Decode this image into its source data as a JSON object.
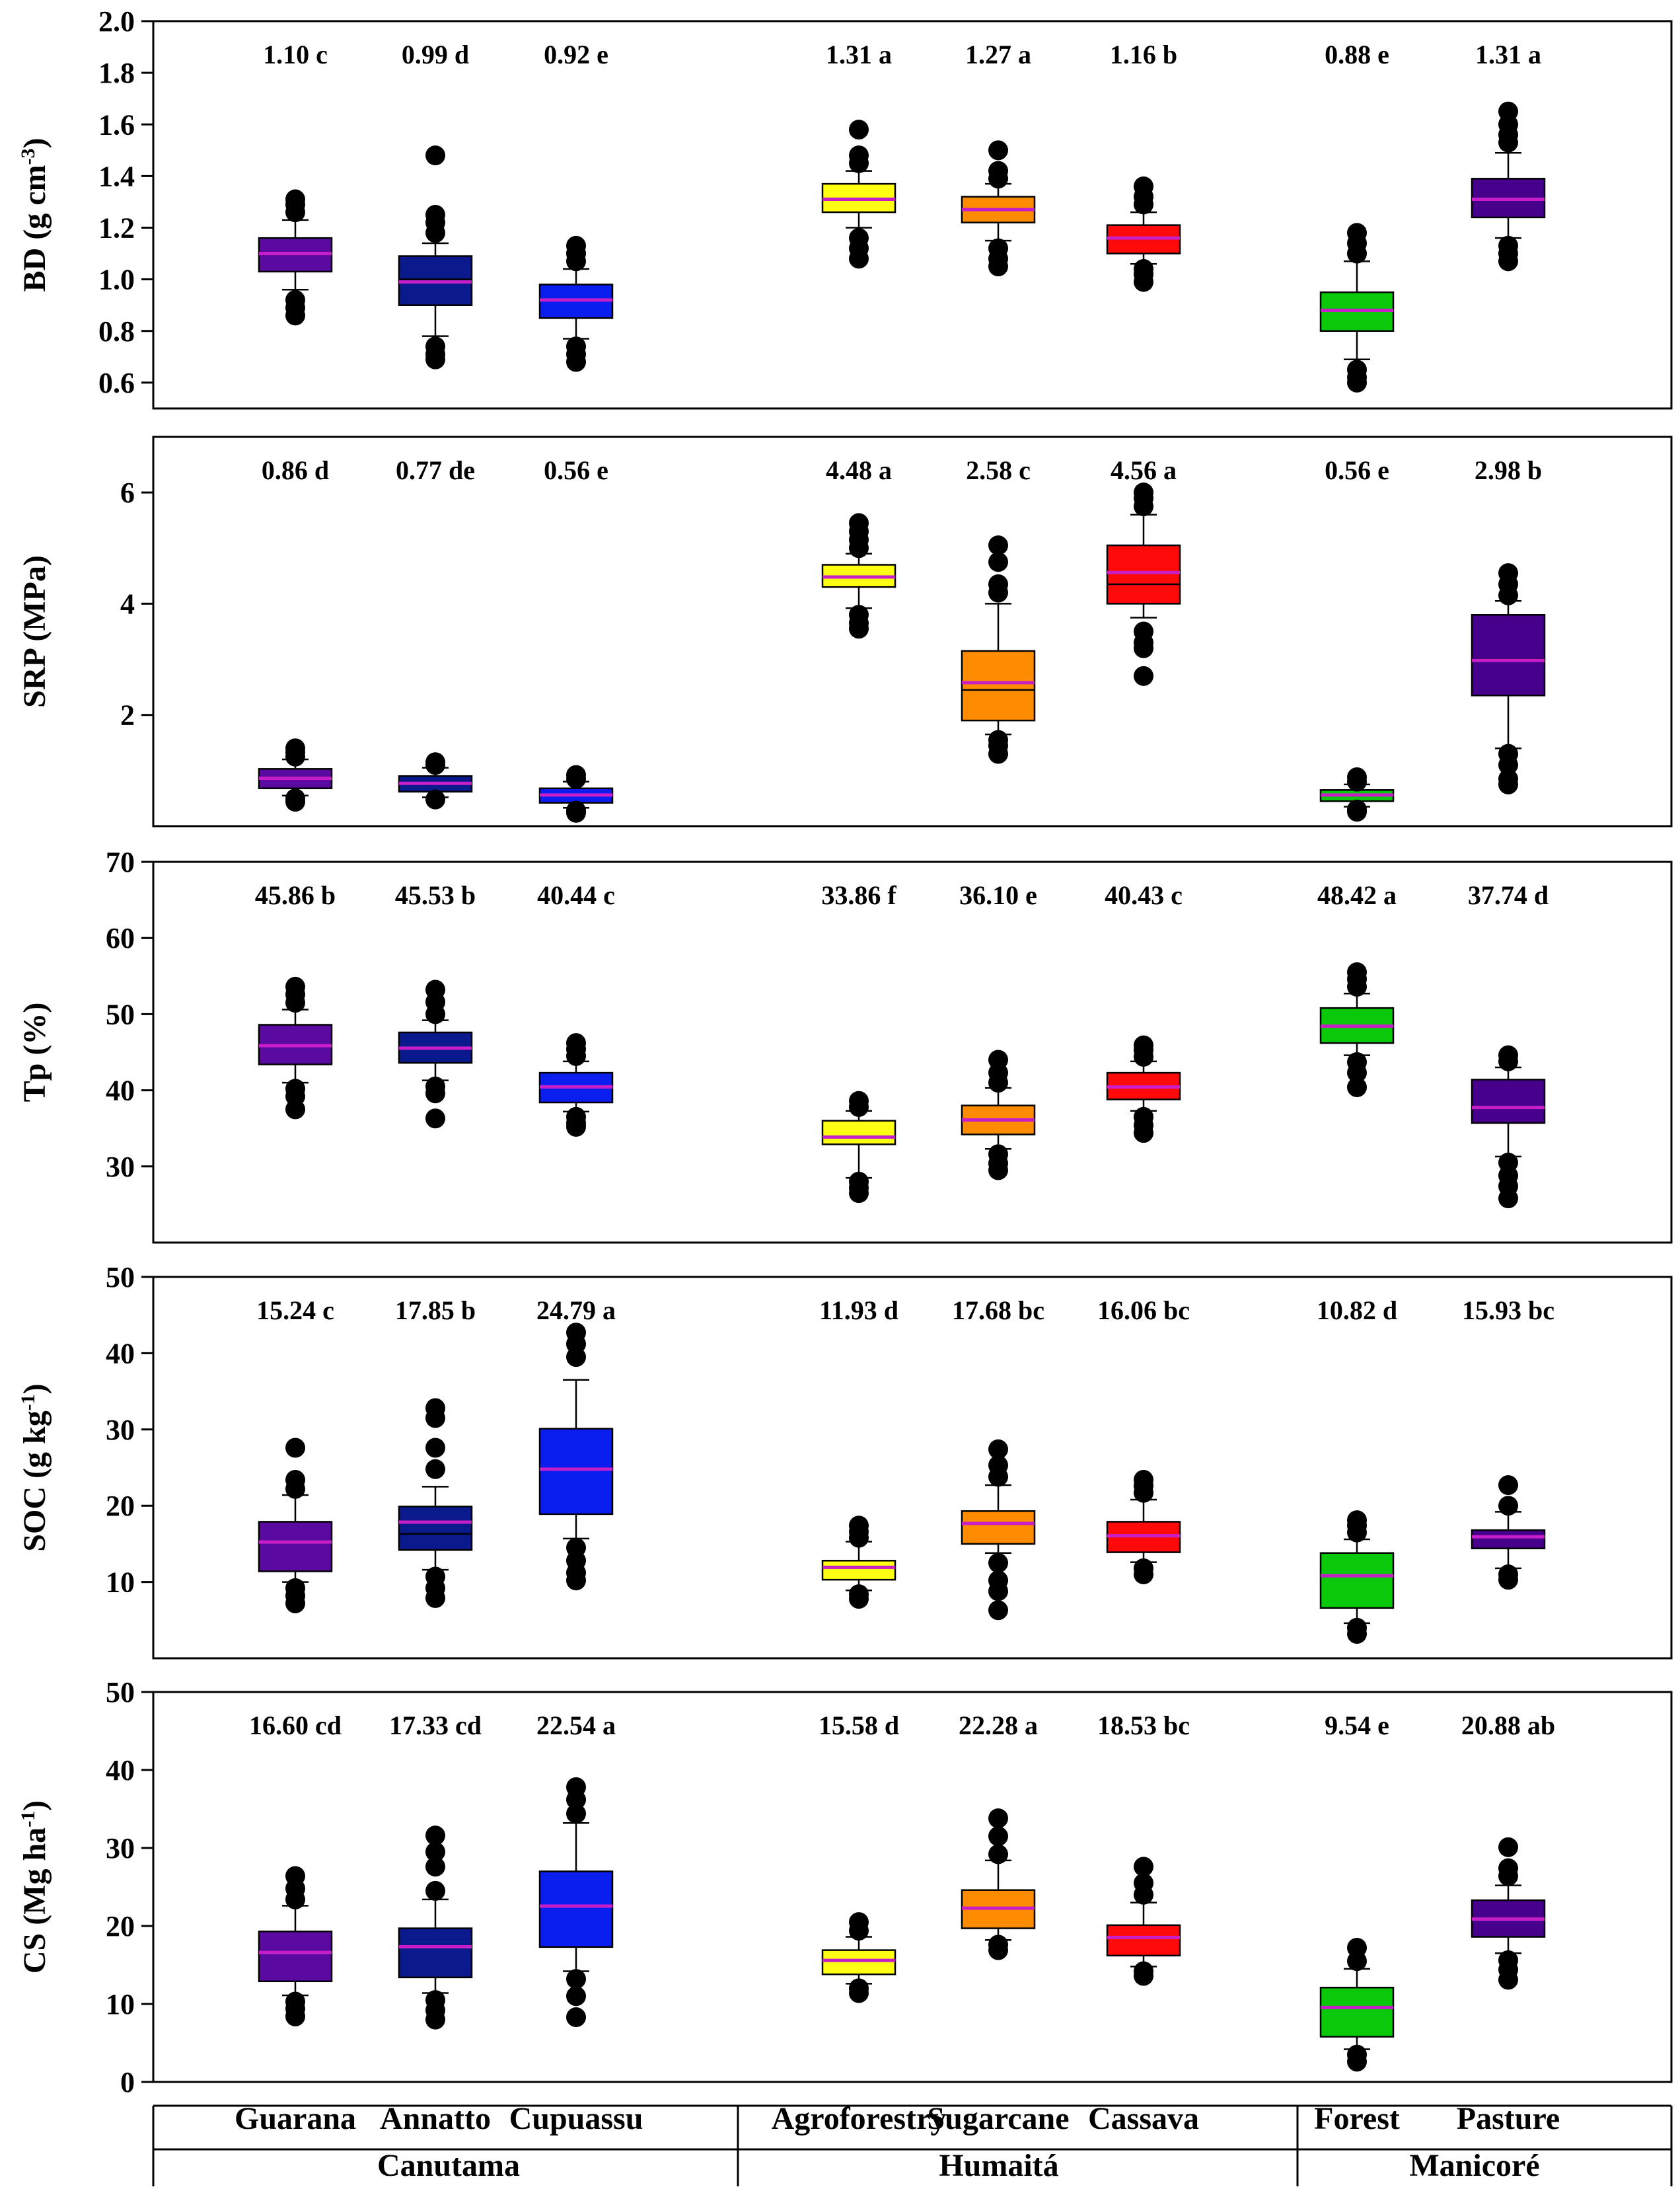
{
  "chart_data": {
    "type": "box",
    "categories": [
      "Guarana",
      "Annatto",
      "Cupuassu",
      "Agroforestry",
      "Sugarcane",
      "Cassava",
      "Forest",
      "Pasture"
    ],
    "groups": [
      {
        "label": "Canutama",
        "members": [
          "Guarana",
          "Annatto",
          "Cupuassu"
        ]
      },
      {
        "label": "Humaitá",
        "members": [
          "Agroforestry",
          "Sugarcane",
          "Cassava"
        ]
      },
      {
        "label": "Manicoré",
        "members": [
          "Forest",
          "Pasture"
        ]
      }
    ],
    "colors": [
      "#5a0aa0",
      "#0a1a8c",
      "#0a1ef0",
      "#ffff14",
      "#ff8c00",
      "#ff0a0a",
      "#0ac80a",
      "#46008c"
    ],
    "median_color": "#000000",
    "mean_color": "#c81ec8",
    "panels": [
      {
        "ylabel_main": "BD (g cm",
        "ylabel_sup": "-3",
        "ylabel_tail": ")",
        "ylim": [
          0.5,
          2.0
        ],
        "yticks": [
          "0.6",
          "0.8",
          "1.0",
          "1.2",
          "1.4",
          "1.6",
          "1.8",
          "2.0"
        ],
        "ytick_values": [
          0.6,
          0.8,
          1.0,
          1.2,
          1.4,
          1.6,
          1.8,
          2.0
        ],
        "labels": [
          "1.10 c",
          "0.99 d",
          "0.92 e",
          "1.31 a",
          "1.27 a",
          "1.16 b",
          "0.88 e",
          "1.31 a"
        ],
        "boxes": [
          {
            "q1": 1.03,
            "med": 1.1,
            "q3": 1.16,
            "mean": 1.1,
            "wlo": 0.96,
            "whi": 1.23,
            "outliers": [
              0.92,
              0.89,
              0.86,
              1.26,
              1.29,
              1.31
            ]
          },
          {
            "q1": 0.9,
            "med": 1.0,
            "q3": 1.09,
            "mean": 0.99,
            "wlo": 0.78,
            "whi": 1.14,
            "outliers": [
              0.74,
              0.71,
              0.69,
              1.18,
              1.22,
              1.25,
              1.48
            ]
          },
          {
            "q1": 0.85,
            "med": 0.92,
            "q3": 0.98,
            "mean": 0.92,
            "wlo": 0.77,
            "whi": 1.04,
            "outliers": [
              0.74,
              0.71,
              0.68,
              1.07,
              1.1,
              1.13
            ]
          },
          {
            "q1": 1.26,
            "med": 1.31,
            "q3": 1.37,
            "mean": 1.31,
            "wlo": 1.2,
            "whi": 1.42,
            "outliers": [
              1.16,
              1.12,
              1.08,
              1.45,
              1.48,
              1.58
            ]
          },
          {
            "q1": 1.22,
            "med": 1.27,
            "q3": 1.32,
            "mean": 1.27,
            "wlo": 1.15,
            "whi": 1.37,
            "outliers": [
              1.12,
              1.08,
              1.05,
              1.39,
              1.42,
              1.5
            ]
          },
          {
            "q1": 1.1,
            "med": 1.16,
            "q3": 1.21,
            "mean": 1.16,
            "wlo": 1.06,
            "whi": 1.26,
            "outliers": [
              1.04,
              1.02,
              0.99,
              1.29,
              1.32,
              1.36
            ]
          },
          {
            "q1": 0.8,
            "med": 0.88,
            "q3": 0.95,
            "mean": 0.88,
            "wlo": 0.69,
            "whi": 1.07,
            "outliers": [
              0.65,
              0.62,
              0.6,
              1.1,
              1.14,
              1.18
            ]
          },
          {
            "q1": 1.24,
            "med": 1.31,
            "q3": 1.39,
            "mean": 1.31,
            "wlo": 1.16,
            "whi": 1.49,
            "outliers": [
              1.13,
              1.1,
              1.07,
              1.53,
              1.56,
              1.6,
              1.65
            ]
          }
        ]
      },
      {
        "ylabel_main": "SRP (MPa)",
        "ylabel_sup": "",
        "ylabel_tail": "",
        "ylim": [
          0,
          7
        ],
        "yticks": [
          "2",
          "4",
          "6"
        ],
        "ytick_values": [
          2,
          4,
          6
        ],
        "labels": [
          "0.86 d",
          "0.77 de",
          "0.56 e",
          "4.48 a",
          "2.58 c",
          "4.56 a",
          "0.56 e",
          "2.98 b"
        ],
        "boxes": [
          {
            "q1": 0.68,
            "med": 0.86,
            "q3": 1.03,
            "mean": 0.86,
            "wlo": 0.55,
            "whi": 1.2,
            "outliers": [
              0.5,
              0.44,
              1.25,
              1.33,
              1.4
            ]
          },
          {
            "q1": 0.62,
            "med": 0.77,
            "q3": 0.9,
            "mean": 0.77,
            "wlo": 0.52,
            "whi": 1.05,
            "outliers": [
              0.48,
              1.1,
              1.15
            ]
          },
          {
            "q1": 0.42,
            "med": 0.56,
            "q3": 0.68,
            "mean": 0.56,
            "wlo": 0.33,
            "whi": 0.8,
            "outliers": [
              0.28,
              0.24,
              0.85,
              0.92
            ]
          },
          {
            "q1": 4.3,
            "med": 4.48,
            "q3": 4.7,
            "mean": 4.48,
            "wlo": 3.92,
            "whi": 4.9,
            "outliers": [
              3.8,
              3.65,
              3.55,
              5.0,
              5.15,
              5.3,
              5.45
            ]
          },
          {
            "q1": 1.9,
            "med": 2.45,
            "q3": 3.15,
            "mean": 2.58,
            "wlo": 1.65,
            "whi": 4.0,
            "outliers": [
              1.55,
              1.45,
              1.3,
              4.2,
              4.35,
              4.75,
              5.05
            ]
          },
          {
            "q1": 4.0,
            "med": 4.35,
            "q3": 5.05,
            "mean": 4.56,
            "wlo": 3.75,
            "whi": 5.6,
            "outliers": [
              3.5,
              3.3,
              3.2,
              2.7,
              5.75,
              5.9,
              6.0
            ]
          },
          {
            "q1": 0.45,
            "med": 0.56,
            "q3": 0.65,
            "mean": 0.56,
            "wlo": 0.35,
            "whi": 0.75,
            "outliers": [
              0.3,
              0.26,
              0.8,
              0.88
            ]
          },
          {
            "q1": 2.35,
            "med": 3.0,
            "q3": 3.8,
            "mean": 2.98,
            "wlo": 1.4,
            "whi": 4.05,
            "outliers": [
              1.3,
              1.1,
              0.85,
              0.75,
              4.15,
              4.35,
              4.55
            ]
          }
        ]
      },
      {
        "ylabel_main": "Tp (%)",
        "ylabel_sup": "",
        "ylabel_tail": "",
        "ylim": [
          20,
          70
        ],
        "yticks": [
          "30",
          "40",
          "50",
          "60",
          "70"
        ],
        "ytick_values": [
          30,
          40,
          50,
          60,
          70
        ],
        "labels": [
          "45.86 b",
          "45.53 b",
          "40.44 c",
          "33.86 f",
          "36.10 e",
          "40.43 c",
          "48.42 a",
          "37.74 d"
        ],
        "boxes": [
          {
            "q1": 43.4,
            "med": 45.9,
            "q3": 48.6,
            "mean": 45.86,
            "wlo": 41.0,
            "whi": 50.6,
            "outliers": [
              40.2,
              39.2,
              37.5,
              51.5,
              52.6,
              53.6
            ]
          },
          {
            "q1": 43.6,
            "med": 45.5,
            "q3": 47.6,
            "mean": 45.53,
            "wlo": 41.3,
            "whi": 49.2,
            "outliers": [
              40.5,
              39.6,
              36.3,
              50.0,
              51.6,
              53.2
            ]
          },
          {
            "q1": 38.4,
            "med": 40.4,
            "q3": 42.3,
            "mean": 40.44,
            "wlo": 37.2,
            "whi": 43.8,
            "outliers": [
              36.5,
              35.7,
              35.2,
              44.5,
              45.4,
              46.2
            ]
          },
          {
            "q1": 32.9,
            "med": 33.9,
            "q3": 36.0,
            "mean": 33.86,
            "wlo": 28.5,
            "whi": 37.3,
            "outliers": [
              28.0,
              27.2,
              26.5,
              37.8,
              38.6
            ]
          },
          {
            "q1": 34.2,
            "med": 36.1,
            "q3": 38.0,
            "mean": 36.1,
            "wlo": 32.3,
            "whi": 40.3,
            "outliers": [
              31.6,
              30.4,
              29.5,
              41.0,
              42.3,
              44.0
            ]
          },
          {
            "q1": 38.8,
            "med": 40.4,
            "q3": 42.3,
            "mean": 40.43,
            "wlo": 37.3,
            "whi": 43.8,
            "outliers": [
              36.5,
              35.4,
              34.4,
              44.4,
              45.3,
              45.9
            ]
          },
          {
            "q1": 46.2,
            "med": 48.4,
            "q3": 50.8,
            "mean": 48.42,
            "wlo": 44.6,
            "whi": 52.7,
            "outliers": [
              43.7,
              42.3,
              40.4,
              53.6,
              54.6,
              55.5
            ]
          },
          {
            "q1": 35.7,
            "med": 37.7,
            "q3": 41.4,
            "mean": 37.74,
            "wlo": 31.3,
            "whi": 43.0,
            "outliers": [
              30.5,
              28.8,
              27.4,
              25.8,
              43.8,
              44.6
            ]
          }
        ]
      },
      {
        "ylabel_main": "SOC (g kg",
        "ylabel_sup": "-1",
        "ylabel_tail": ")",
        "ylim": [
          0,
          50
        ],
        "yticks": [
          "10",
          "20",
          "30",
          "40",
          "50"
        ],
        "ytick_values": [
          10,
          20,
          30,
          40,
          50
        ],
        "labels": [
          "15.24 c",
          "17.85 b",
          "24.79 a",
          "11.93 d",
          "17.68 bc",
          "16.06 bc",
          "10.82 d",
          "15.93 bc"
        ],
        "boxes": [
          {
            "q1": 11.4,
            "med": 15.2,
            "q3": 17.9,
            "mean": 15.24,
            "wlo": 10.0,
            "whi": 21.4,
            "outliers": [
              9.2,
              8.2,
              7.2,
              22.2,
              23.4,
              27.6
            ]
          },
          {
            "q1": 14.2,
            "med": 16.3,
            "q3": 19.9,
            "mean": 17.85,
            "wlo": 11.6,
            "whi": 22.5,
            "outliers": [
              10.7,
              9.2,
              7.9,
              24.8,
              27.6,
              31.5,
              32.8
            ]
          },
          {
            "q1": 18.9,
            "med": 24.8,
            "q3": 30.1,
            "mean": 24.79,
            "wlo": 15.7,
            "whi": 36.5,
            "outliers": [
              14.5,
              12.8,
              11.2,
              10.2,
              39.5,
              41.2,
              42.7
            ]
          },
          {
            "q1": 10.3,
            "med": 11.9,
            "q3": 12.8,
            "mean": 11.93,
            "wlo": 8.9,
            "whi": 15.3,
            "outliers": [
              8.4,
              7.8,
              15.8,
              16.6,
              17.4
            ]
          },
          {
            "q1": 15.0,
            "med": 17.7,
            "q3": 19.3,
            "mean": 17.68,
            "wlo": 13.8,
            "whi": 22.7,
            "outliers": [
              12.5,
              10.2,
              8.8,
              6.3,
              23.8,
              25.3,
              27.4
            ]
          },
          {
            "q1": 13.9,
            "med": 16.1,
            "q3": 17.9,
            "mean": 16.06,
            "wlo": 12.6,
            "whi": 20.8,
            "outliers": [
              11.8,
              11.0,
              21.7,
              22.6,
              23.4
            ]
          },
          {
            "q1": 6.6,
            "med": 10.8,
            "q3": 13.8,
            "mean": 10.82,
            "wlo": 4.6,
            "whi": 15.6,
            "outliers": [
              4.0,
              3.2,
              16.5,
              17.4,
              18.1
            ]
          },
          {
            "q1": 14.4,
            "med": 15.9,
            "q3": 16.8,
            "mean": 15.93,
            "wlo": 11.8,
            "whi": 19.2,
            "outliers": [
              11.0,
              10.3,
              20.0,
              22.7
            ]
          }
        ]
      },
      {
        "ylabel_main": "CS (Mg ha",
        "ylabel_sup": "-1",
        "ylabel_tail": ")",
        "ylim": [
          0,
          50
        ],
        "yticks": [
          "0",
          "10",
          "20",
          "30",
          "40",
          "50"
        ],
        "ytick_values": [
          0,
          10,
          20,
          30,
          40,
          50
        ],
        "labels": [
          "16.60 cd",
          "17.33 cd",
          "22.54 a",
          "15.58 d",
          "22.28 a",
          "18.53 bc",
          "9.54 e",
          "20.88 ab"
        ],
        "boxes": [
          {
            "q1": 12.9,
            "med": 16.6,
            "q3": 19.3,
            "mean": 16.6,
            "wlo": 11.1,
            "whi": 22.6,
            "outliers": [
              10.3,
              9.4,
              8.4,
              23.4,
              24.8,
              26.4
            ]
          },
          {
            "q1": 13.4,
            "med": 17.3,
            "q3": 19.7,
            "mean": 17.33,
            "wlo": 11.4,
            "whi": 23.4,
            "outliers": [
              10.5,
              9.2,
              8.0,
              24.5,
              27.6,
              29.5,
              31.6
            ]
          },
          {
            "q1": 17.3,
            "med": 22.5,
            "q3": 27.0,
            "mean": 22.54,
            "wlo": 14.2,
            "whi": 33.2,
            "outliers": [
              13.2,
              11.0,
              8.3,
              34.4,
              36.2,
              37.8
            ]
          },
          {
            "q1": 13.8,
            "med": 15.6,
            "q3": 16.9,
            "mean": 15.58,
            "wlo": 12.6,
            "whi": 18.6,
            "outliers": [
              12.0,
              11.4,
              19.4,
              20.5
            ]
          },
          {
            "q1": 19.7,
            "med": 22.3,
            "q3": 24.6,
            "mean": 22.28,
            "wlo": 18.2,
            "whi": 28.4,
            "outliers": [
              17.6,
              16.9,
              29.2,
              31.5,
              33.8
            ]
          },
          {
            "q1": 16.2,
            "med": 18.5,
            "q3": 20.1,
            "mean": 18.53,
            "wlo": 14.8,
            "whi": 23.0,
            "outliers": [
              14.2,
              13.6,
              24.0,
              25.5,
              27.6
            ]
          },
          {
            "q1": 5.8,
            "med": 9.5,
            "q3": 12.1,
            "mean": 9.54,
            "wlo": 4.2,
            "whi": 14.5,
            "outliers": [
              3.5,
              2.6,
              15.5,
              17.2
            ]
          },
          {
            "q1": 18.6,
            "med": 20.9,
            "q3": 23.3,
            "mean": 20.88,
            "wlo": 16.5,
            "whi": 25.2,
            "outliers": [
              15.6,
              14.4,
              13.1,
              26.4,
              27.4,
              30.1
            ]
          }
        ]
      }
    ]
  }
}
